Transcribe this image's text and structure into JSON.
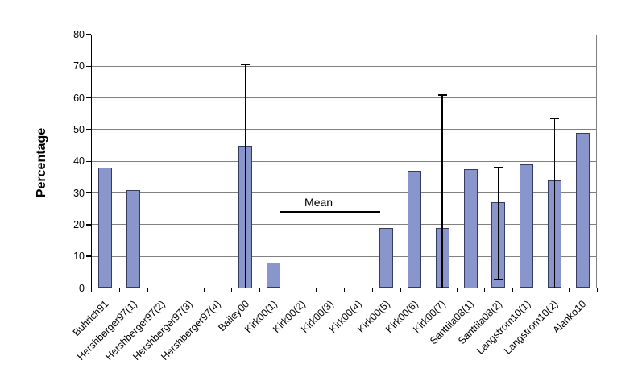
{
  "chart_data": {
    "type": "bar",
    "title": "",
    "xlabel": "",
    "ylabel": "Percentage",
    "ylim": [
      0,
      80
    ],
    "yticks": [
      0,
      10,
      20,
      30,
      40,
      50,
      60,
      70,
      80
    ],
    "grid": true,
    "legend_position": "none",
    "categories": [
      "Buhrich91",
      "Hershberger97(1)",
      "Hershberger97(2)",
      "Hershberger97(3)",
      "Hershberger97(4)",
      "Bailey00",
      "Kirk00(1)",
      "Kirk00(2)",
      "Kirk00(3)",
      "Kirk00(4)",
      "Kirk00(5)",
      "Kirk00(6)",
      "Kirk00(7)",
      "Santtila08(1)",
      "Santtila08(2)",
      "Langstrom10(1)",
      "Langstrom10(2)",
      "Alanko10"
    ],
    "values": [
      38,
      31,
      0,
      0,
      0,
      45,
      8,
      0,
      0,
      0,
      19,
      37,
      19,
      37.5,
      27,
      39,
      34,
      49
    ],
    "error_bars": [
      {
        "category": "Bailey00",
        "index": 5,
        "low": 0,
        "high": 70.5,
        "caps": "top"
      },
      {
        "category": "Kirk00(7)",
        "index": 12,
        "low": 0,
        "high": 61,
        "caps": "top"
      },
      {
        "category": "Santtila08(2)",
        "index": 14,
        "low": 2.5,
        "high": 38,
        "caps": "both"
      },
      {
        "category": "Langstrom10(2)",
        "index": 16,
        "low": 0,
        "high": 53.5,
        "caps": "top"
      }
    ],
    "annotation": {
      "label": "Mean",
      "value": 24,
      "span_start": 6.7,
      "span_end": 10.3
    },
    "colors": {
      "bar_fill": "#8896CB",
      "bar_border": "#333C5E",
      "gridline": "#808080",
      "axis": "#000000",
      "error_bar": "#000000",
      "text": "#000000"
    }
  }
}
